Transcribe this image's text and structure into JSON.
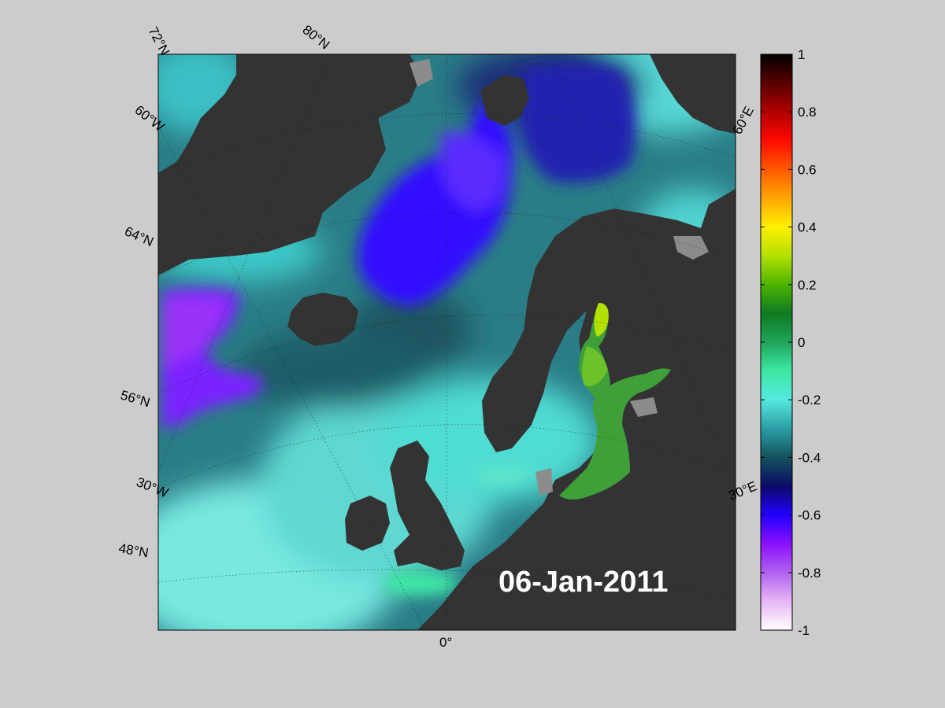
{
  "map": {
    "date_label": "06-Jan-2011",
    "lat_labels": [
      "72°N",
      "80°N",
      "64°N",
      "56°N",
      "48°N"
    ],
    "lon_labels": [
      "60°W",
      "30°W",
      "0°",
      "30°E",
      "60°E"
    ],
    "colors": {
      "land": "#333333",
      "ice_land": "#8c8c8c",
      "ocean_base": "#2a7d86",
      "background": "#cccccc"
    }
  },
  "colorbar": {
    "min": -1,
    "max": 1,
    "ticks": [
      "1",
      "0.8",
      "0.6",
      "0.4",
      "0.2",
      "0",
      "-0.2",
      "-0.4",
      "-0.6",
      "-0.8",
      "-1"
    ],
    "colormap": [
      "#ffffff",
      "#e7b6f5",
      "#b062f0",
      "#8a10ff",
      "#2200ff",
      "#0b0b66",
      "#14525d",
      "#2b9ea5",
      "#55e8df",
      "#3de8a4",
      "#1fa55a",
      "#0e7a22",
      "#4cb400",
      "#b4e000",
      "#fff000",
      "#ffa500",
      "#ff5a00",
      "#ff0a00",
      "#b00000",
      "#5a0000",
      "#000000"
    ]
  }
}
